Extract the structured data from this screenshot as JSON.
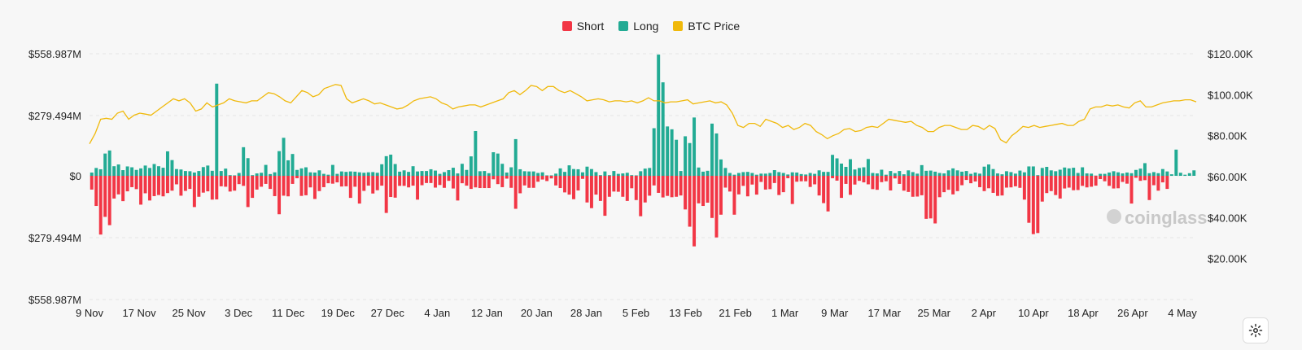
{
  "legend": {
    "short": "Short",
    "long": "Long",
    "price": "BTC Price"
  },
  "colors": {
    "short": "#f23645",
    "long": "#22ab94",
    "price": "#f0b90b",
    "grid": "#e6e6e6",
    "text": "#222222"
  },
  "watermark": "coinglass",
  "chart_data": {
    "type": "bar",
    "x_tick_labels": [
      "9 Nov",
      "17 Nov",
      "25 Nov",
      "3 Dec",
      "11 Dec",
      "19 Dec",
      "27 Dec",
      "4 Jan",
      "12 Jan",
      "20 Jan",
      "28 Jan",
      "5 Feb",
      "13 Feb",
      "21 Feb",
      "1 Mar",
      "9 Mar",
      "17 Mar",
      "25 Mar",
      "2 Apr",
      "10 Apr",
      "18 Apr",
      "26 Apr",
      "4 May"
    ],
    "left_axis": {
      "ticks": [
        "$558.987M",
        "$279.494M",
        "$0",
        "$279.494M",
        "$558.987M"
      ],
      "range": [
        -558.987,
        558.987
      ],
      "unit": "M"
    },
    "right_axis": {
      "ticks": [
        "$120.00K",
        "$100.00K",
        "$80.00K",
        "$60.00K",
        "$40.00K",
        "$20.00K"
      ],
      "range": [
        0,
        120000
      ]
    },
    "series": [
      {
        "name": "Long",
        "values": [
          15,
          36,
          30,
          102,
          116,
          44,
          52,
          26,
          43,
          39,
          27,
          34,
          47,
          36,
          54,
          44,
          37,
          112,
          72,
          31,
          29,
          22,
          21,
          15,
          22,
          40,
          47,
          23,
          422,
          22,
          33,
          3,
          2,
          13,
          131,
          81,
          3,
          11,
          14,
          50,
          8,
          16,
          113,
          174,
          71,
          100,
          27,
          34,
          39,
          16,
          15,
          25,
          9,
          5,
          50,
          9,
          20,
          18,
          20,
          19,
          16,
          14,
          16,
          17,
          14,
          53,
          90,
          97,
          54,
          19,
          25,
          18,
          44,
          20,
          22,
          22,
          30,
          24,
          9,
          17,
          26,
          37,
          11,
          55,
          27,
          89,
          205,
          21,
          22,
          12,
          108,
          102,
          55,
          15,
          39,
          168,
          30,
          21,
          20,
          20,
          13,
          16,
          2,
          2,
          10,
          34,
          18,
          48,
          31,
          30,
          16,
          42,
          31,
          17,
          3,
          20,
          3,
          22,
          9,
          11,
          14,
          3,
          2,
          21,
          33,
          36,
          218,
          555,
          428,
          226,
          213,
          165,
          22,
          181,
          150,
          267,
          38,
          19,
          23,
          239,
          194,
          75,
          36,
          13,
          5,
          13,
          17,
          18,
          13,
          5,
          10,
          10,
          13,
          26,
          17,
          13,
          6,
          16,
          15,
          8,
          6,
          13,
          9,
          25,
          18,
          18,
          96,
          80,
          56,
          41,
          76,
          29,
          36,
          39,
          77,
          13,
          11,
          28,
          5,
          22,
          12,
          22,
          7,
          25,
          17,
          10,
          49,
          23,
          24,
          19,
          13,
          11,
          25,
          34,
          25,
          19,
          22,
          9,
          15,
          10,
          42,
          52,
          31,
          11,
          7,
          21,
          17,
          10,
          24,
          16,
          43,
          43,
          3,
          36,
          41,
          25,
          21,
          28,
          38,
          34,
          37,
          13,
          39,
          11,
          10,
          1,
          9,
          9,
          15,
          21,
          16,
          11,
          15,
          12,
          27,
          33,
          58,
          12,
          17,
          12,
          31,
          20,
          7,
          120,
          14,
          5,
          12,
          25
        ],
        "color": "#22ab94"
      },
      {
        "name": "Short",
        "values": [
          63,
          138,
          269,
          188,
          226,
          104,
          85,
          116,
          71,
          52,
          61,
          132,
          80,
          113,
          93,
          88,
          94,
          79,
          68,
          39,
          91,
          69,
          60,
          143,
          96,
          77,
          71,
          109,
          108,
          48,
          50,
          72,
          68,
          38,
          46,
          143,
          101,
          63,
          50,
          37,
          60,
          93,
          176,
          91,
          94,
          37,
          11,
          92,
          89,
          53,
          106,
          70,
          52,
          34,
          36,
          30,
          49,
          48,
          101,
          50,
          127,
          69,
          45,
          81,
          66,
          45,
          170,
          97,
          100,
          46,
          46,
          53,
          45,
          109,
          43,
          33,
          33,
          54,
          42,
          55,
          23,
          58,
          113,
          34,
          45,
          60,
          53,
          56,
          56,
          56,
          16,
          38,
          52,
          13,
          55,
          151,
          80,
          44,
          55,
          55,
          27,
          17,
          24,
          12,
          44,
          56,
          76,
          86,
          107,
          67,
          14,
          122,
          148,
          86,
          115,
          183,
          96,
          72,
          73,
          96,
          115,
          57,
          111,
          185,
          122,
          91,
          44,
          78,
          99,
          92,
          98,
          96,
          90,
          154,
          233,
          323,
          126,
          138,
          123,
          193,
          282,
          178,
          54,
          72,
          178,
          85,
          46,
          94,
          40,
          86,
          28,
          63,
          61,
          33,
          88,
          75,
          11,
          129,
          27,
          25,
          25,
          51,
          39,
          90,
          125,
          163,
          11,
          22,
          101,
          37,
          87,
          40,
          23,
          30,
          39,
          61,
          64,
          29,
          25,
          67,
          12,
          37,
          68,
          74,
          96,
          95,
          89,
          197,
          195,
          218,
          98,
          75,
          64,
          85,
          70,
          43,
          19,
          34,
          26,
          52,
          70,
          57,
          78,
          92,
          90,
          54,
          53,
          48,
          55,
          109,
          215,
          267,
          262,
          118,
          79,
          70,
          88,
          104,
          58,
          54,
          66,
          65,
          46,
          53,
          50,
          45,
          15,
          25,
          46,
          58,
          57,
          28,
          36,
          127,
          9,
          23,
          20,
          111,
          43,
          68,
          30,
          60
        ],
        "color": "#f23645"
      },
      {
        "name": "BTC Price",
        "values": [
          76000,
          81000,
          88000,
          88500,
          88000,
          91000,
          92000,
          88000,
          90000,
          91000,
          90500,
          90000,
          92000,
          94000,
          96000,
          98000,
          97000,
          98000,
          96000,
          92000,
          93000,
          96000,
          94000,
          95000,
          96000,
          98000,
          97000,
          96500,
          96000,
          97000,
          97000,
          99000,
          101000,
          100500,
          99000,
          97000,
          96000,
          99000,
          102000,
          101000,
          99000,
          100000,
          103000,
          104000,
          105000,
          104500,
          98000,
          96000,
          97000,
          98000,
          97000,
          95500,
          96000,
          95000,
          94000,
          93000,
          93500,
          95000,
          97000,
          98000,
          98500,
          99000,
          98000,
          96000,
          95000,
          93000,
          94000,
          94500,
          95000,
          95000,
          94000,
          95000,
          96000,
          97000,
          98000,
          101000,
          102000,
          100000,
          102000,
          104500,
          104000,
          102000,
          104000,
          104000,
          102000,
          101000,
          102000,
          100500,
          99000,
          97000,
          97500,
          98000,
          97500,
          96500,
          97000,
          97000,
          96500,
          97000,
          96000,
          97000,
          98500,
          97000,
          97000,
          96000,
          96500,
          96500,
          97000,
          97500,
          95500,
          96000,
          96500,
          97000,
          96000,
          96500,
          95000,
          91000,
          85000,
          84000,
          86000,
          86000,
          84500,
          88000,
          87000,
          86000,
          84000,
          85000,
          83000,
          84000,
          86000,
          85000,
          82000,
          80500,
          78500,
          80000,
          81000,
          83000,
          83500,
          82000,
          82500,
          84000,
          84500,
          84000,
          86000,
          88000,
          87500,
          87000,
          86500,
          87000,
          85000,
          84000,
          82000,
          82000,
          84000,
          85000,
          85000,
          84000,
          83000,
          83000,
          85000,
          84500,
          83000,
          85000,
          83500,
          78000,
          76500,
          80000,
          82000,
          84500,
          84000,
          85000,
          84000,
          84500,
          85000,
          85500,
          86000,
          85000,
          85000,
          87000,
          88000,
          93000,
          94000,
          94000,
          95000,
          94500,
          95000,
          94000,
          93500,
          96000,
          97000,
          94000,
          94000,
          95000,
          96000,
          96500,
          97000,
          97000,
          97500,
          97500,
          96500
        ],
        "color": "#f0b90b"
      }
    ],
    "grid": true,
    "legend_position": "top-center"
  }
}
